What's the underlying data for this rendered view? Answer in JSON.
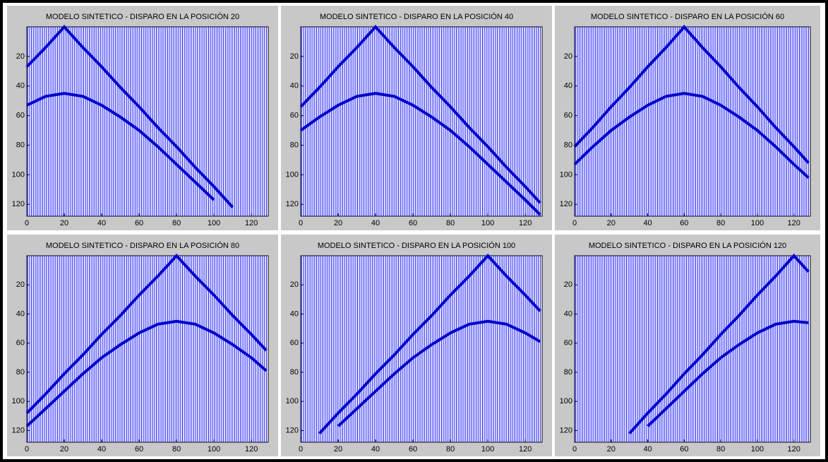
{
  "chart_data": [
    {
      "type": "line",
      "title": "MODELO SINTETICO - DISPARO EN LA POSICIÓN 20",
      "x": [
        0,
        10,
        20,
        30,
        40,
        50,
        60,
        70,
        80,
        90,
        100,
        110,
        120,
        128
      ],
      "series": [
        {
          "color": "#0000cc",
          "values": [
            27,
            14,
            0,
            14,
            27,
            41,
            54,
            68,
            81,
            95,
            108,
            122,
            null,
            null
          ]
        },
        {
          "color": "#0000cc",
          "values": [
            53,
            47,
            45,
            47,
            53,
            61,
            70,
            81,
            93,
            105,
            117,
            null,
            null,
            null
          ]
        }
      ],
      "xlim": [
        0,
        129
      ],
      "ylim": [
        0,
        128
      ],
      "y_inverted": true,
      "xticks": [
        0,
        20,
        40,
        60,
        80,
        100,
        120
      ],
      "yticks": [
        20,
        40,
        60,
        80,
        100,
        120
      ]
    },
    {
      "type": "line",
      "title": "MODELO SINTETICO - DISPARO EN LA POSICIÓN 40",
      "x": [
        0,
        10,
        20,
        30,
        40,
        50,
        60,
        70,
        80,
        90,
        100,
        110,
        120,
        128
      ],
      "series": [
        {
          "color": "#0000cc",
          "values": [
            54,
            41,
            27,
            14,
            0,
            14,
            27,
            41,
            54,
            68,
            81,
            95,
            108,
            119
          ]
        },
        {
          "color": "#0000cc",
          "values": [
            70,
            61,
            53,
            47,
            45,
            47,
            53,
            61,
            70,
            81,
            93,
            105,
            117,
            127
          ]
        }
      ],
      "xlim": [
        0,
        129
      ],
      "ylim": [
        0,
        128
      ],
      "y_inverted": true,
      "xticks": [
        0,
        20,
        40,
        60,
        80,
        100,
        120
      ],
      "yticks": [
        20,
        40,
        60,
        80,
        100,
        120
      ]
    },
    {
      "type": "line",
      "title": "MODELO SINTETICO - DISPARO EN LA POSICIÓN 60",
      "x": [
        0,
        10,
        20,
        30,
        40,
        50,
        60,
        70,
        80,
        90,
        100,
        110,
        120,
        128
      ],
      "series": [
        {
          "color": "#0000cc",
          "values": [
            81,
            68,
            54,
            41,
            27,
            14,
            0,
            14,
            27,
            41,
            54,
            68,
            81,
            92
          ]
        },
        {
          "color": "#0000cc",
          "values": [
            93,
            81,
            70,
            61,
            53,
            47,
            45,
            47,
            53,
            61,
            70,
            81,
            93,
            102
          ]
        }
      ],
      "xlim": [
        0,
        129
      ],
      "ylim": [
        0,
        128
      ],
      "y_inverted": true,
      "xticks": [
        0,
        20,
        40,
        60,
        80,
        100,
        120
      ],
      "yticks": [
        20,
        40,
        60,
        80,
        100,
        120
      ]
    },
    {
      "type": "line",
      "title": "MODELO SINTETICO - DISPARO EN LA POSICIÓN 80",
      "x": [
        0,
        10,
        20,
        30,
        40,
        50,
        60,
        70,
        80,
        90,
        100,
        110,
        120,
        128
      ],
      "series": [
        {
          "color": "#0000cc",
          "values": [
            108,
            95,
            81,
            68,
            54,
            41,
            27,
            14,
            0,
            14,
            27,
            41,
            54,
            65
          ]
        },
        {
          "color": "#0000cc",
          "values": [
            117,
            105,
            93,
            81,
            70,
            61,
            53,
            47,
            45,
            47,
            53,
            61,
            70,
            79
          ]
        }
      ],
      "xlim": [
        0,
        129
      ],
      "ylim": [
        0,
        128
      ],
      "y_inverted": true,
      "xticks": [
        0,
        20,
        40,
        60,
        80,
        100,
        120
      ],
      "yticks": [
        20,
        40,
        60,
        80,
        100,
        120
      ]
    },
    {
      "type": "line",
      "title": "MODELO SINTETICO - DISPARO EN LA POSICIÓN 100",
      "x": [
        0,
        10,
        20,
        30,
        40,
        50,
        60,
        70,
        80,
        90,
        100,
        110,
        120,
        128
      ],
      "series": [
        {
          "color": "#0000cc",
          "values": [
            null,
            122,
            108,
            95,
            81,
            68,
            54,
            41,
            27,
            14,
            0,
            14,
            27,
            38
          ]
        },
        {
          "color": "#0000cc",
          "values": [
            null,
            null,
            117,
            105,
            93,
            81,
            70,
            61,
            53,
            47,
            45,
            47,
            53,
            59
          ]
        }
      ],
      "xlim": [
        0,
        129
      ],
      "ylim": [
        0,
        128
      ],
      "y_inverted": true,
      "xticks": [
        0,
        20,
        40,
        60,
        80,
        100,
        120
      ],
      "yticks": [
        20,
        40,
        60,
        80,
        100,
        120
      ]
    },
    {
      "type": "line",
      "title": "MODELO SINTETICO - DISPARO EN LA POSICIÓN 120",
      "x": [
        0,
        10,
        20,
        30,
        40,
        50,
        60,
        70,
        80,
        90,
        100,
        110,
        120,
        128
      ],
      "series": [
        {
          "color": "#0000cc",
          "values": [
            null,
            null,
            null,
            122,
            108,
            95,
            81,
            68,
            54,
            41,
            27,
            14,
            0,
            11
          ]
        },
        {
          "color": "#0000cc",
          "values": [
            null,
            null,
            null,
            null,
            117,
            105,
            93,
            81,
            70,
            61,
            53,
            47,
            45,
            46
          ]
        }
      ],
      "xlim": [
        0,
        129
      ],
      "ylim": [
        0,
        128
      ],
      "y_inverted": true,
      "xticks": [
        0,
        20,
        40,
        60,
        80,
        100,
        120
      ],
      "yticks": [
        20,
        40,
        60,
        80,
        100,
        120
      ]
    }
  ]
}
